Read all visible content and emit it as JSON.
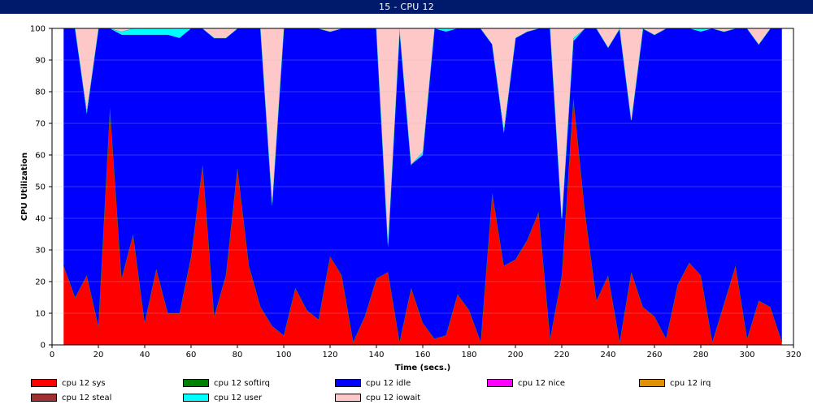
{
  "window": {
    "title": "15 - CPU 12"
  },
  "chart_data": {
    "type": "area",
    "stacked": true,
    "xlabel": "Time (secs.)",
    "ylabel": "CPU Utilization",
    "xlim": [
      0,
      320
    ],
    "ylim": [
      0,
      100
    ],
    "xticks": [
      0,
      20,
      40,
      60,
      80,
      100,
      120,
      140,
      160,
      180,
      200,
      220,
      240,
      260,
      280,
      300,
      320
    ],
    "yticks": [
      0,
      10,
      20,
      30,
      40,
      50,
      60,
      70,
      80,
      90,
      100
    ],
    "grid": "horizontal",
    "legend_position": "bottom",
    "x": [
      5,
      10,
      15,
      20,
      25,
      30,
      35,
      40,
      45,
      50,
      55,
      60,
      65,
      70,
      75,
      80,
      85,
      90,
      95,
      100,
      105,
      110,
      115,
      120,
      125,
      130,
      135,
      140,
      145,
      150,
      155,
      160,
      165,
      170,
      175,
      180,
      185,
      190,
      195,
      200,
      205,
      210,
      215,
      220,
      225,
      230,
      235,
      240,
      245,
      250,
      255,
      260,
      265,
      270,
      275,
      280,
      285,
      290,
      295,
      300,
      305,
      310,
      315
    ],
    "series": [
      {
        "name": "cpu 12 sys",
        "color": "#ff0000",
        "values": [
          25,
          15,
          22,
          6,
          75,
          21,
          35,
          7,
          24,
          10,
          10,
          28,
          57,
          9,
          22,
          56,
          25,
          12,
          6,
          3,
          18,
          11,
          8,
          28,
          22,
          1,
          9,
          21,
          23,
          1,
          18,
          7,
          2,
          3,
          16,
          11,
          1,
          48,
          25,
          27,
          33,
          42,
          2,
          22,
          78,
          42,
          14,
          22,
          1,
          23,
          12,
          9,
          2,
          19,
          26,
          22,
          1,
          13,
          25,
          2,
          14,
          12,
          1
        ]
      },
      {
        "name": "cpu 12 softirq",
        "color": "#008000",
        "values": [
          0,
          0,
          0,
          0,
          0,
          0,
          0,
          0,
          0,
          0,
          0,
          0,
          0,
          0,
          0,
          0,
          0,
          0,
          0,
          0,
          0,
          0,
          0,
          0,
          0,
          0,
          0,
          0,
          0,
          0,
          0,
          0,
          0,
          0,
          0,
          0,
          0,
          0,
          0,
          0,
          0,
          0,
          0,
          0,
          0,
          0,
          0,
          0,
          0,
          0,
          0,
          0,
          0,
          0,
          0,
          0,
          0,
          0,
          0,
          0,
          0,
          0,
          0
        ]
      },
      {
        "name": "cpu 12 idle",
        "color": "#0000ff",
        "values": [
          75,
          85,
          51,
          94,
          25,
          77,
          63,
          91,
          74,
          88,
          87,
          72,
          43,
          88,
          75,
          44,
          75,
          88,
          38,
          97,
          82,
          89,
          92,
          71,
          78,
          99,
          91,
          79,
          8,
          99,
          39,
          53,
          98,
          96,
          84,
          89,
          99,
          47,
          42,
          70,
          66,
          58,
          98,
          18,
          18,
          58,
          86,
          72,
          99,
          48,
          88,
          89,
          98,
          81,
          74,
          77,
          99,
          86,
          75,
          98,
          81,
          88,
          99
        ]
      },
      {
        "name": "cpu 12 nice",
        "color": "#ff00ff",
        "values": [
          0,
          0,
          0,
          0,
          0,
          0,
          0,
          0,
          0,
          0,
          0,
          0,
          0,
          0,
          0,
          0,
          0,
          0,
          0,
          0,
          0,
          0,
          0,
          0,
          0,
          0,
          0,
          0,
          0,
          0,
          0,
          0,
          0,
          0,
          0,
          0,
          0,
          0,
          0,
          0,
          0,
          0,
          0,
          0,
          0,
          0,
          0,
          0,
          0,
          0,
          0,
          0,
          0,
          0,
          0,
          0,
          0,
          0,
          0,
          0,
          0,
          0,
          0
        ]
      },
      {
        "name": "cpu 12 irq",
        "color": "#e09000",
        "values": [
          0,
          0,
          0,
          0,
          0,
          0,
          0,
          0,
          0,
          0,
          0,
          0,
          0,
          0,
          0,
          0,
          0,
          0,
          0,
          0,
          0,
          0,
          0,
          0,
          0,
          0,
          0,
          0,
          0,
          0,
          0,
          0,
          0,
          0,
          0,
          0,
          0,
          0,
          0,
          0,
          0,
          0,
          0,
          0,
          0,
          0,
          0,
          0,
          0,
          0,
          0,
          0,
          0,
          0,
          0,
          0,
          0,
          0,
          0,
          0,
          0,
          0,
          0
        ]
      },
      {
        "name": "cpu 12 steal",
        "color": "#a03030",
        "values": [
          0,
          0,
          0,
          0,
          0,
          0,
          0,
          0,
          0,
          0,
          0,
          0,
          0,
          0,
          0,
          0,
          0,
          0,
          0,
          0,
          0,
          0,
          0,
          0,
          0,
          0,
          0,
          0,
          0,
          0,
          0,
          0,
          0,
          0,
          0,
          0,
          0,
          0,
          0,
          0,
          0,
          0,
          0,
          0,
          0,
          0,
          0,
          0,
          0,
          0,
          0,
          0,
          0,
          0,
          0,
          0,
          0,
          0,
          0,
          0,
          0,
          0,
          0
        ]
      },
      {
        "name": "cpu 12 user",
        "color": "#00ffff",
        "values": [
          0,
          0,
          1,
          0,
          0,
          1,
          2,
          2,
          2,
          2,
          3,
          0,
          0,
          0,
          0,
          0,
          0,
          0,
          1,
          0,
          0,
          0,
          0,
          0,
          0,
          0,
          0,
          0,
          1,
          0,
          0,
          1,
          0,
          1,
          0,
          0,
          0,
          0,
          1,
          0,
          0,
          0,
          0,
          0,
          1,
          0,
          0,
          0,
          0,
          0,
          0,
          0,
          0,
          0,
          0,
          1,
          0,
          0,
          0,
          0,
          0,
          0,
          0
        ]
      },
      {
        "name": "cpu 12 iowait",
        "color": "#ffc8c8",
        "values": [
          0,
          0,
          26,
          0,
          0,
          1,
          0,
          0,
          0,
          0,
          0,
          0,
          0,
          3,
          3,
          0,
          0,
          0,
          55,
          0,
          0,
          0,
          0,
          1,
          0,
          0,
          0,
          0,
          68,
          0,
          43,
          39,
          0,
          0,
          0,
          0,
          0,
          5,
          32,
          3,
          1,
          0,
          0,
          60,
          3,
          0,
          0,
          6,
          0,
          29,
          0,
          2,
          0,
          0,
          0,
          0,
          0,
          1,
          0,
          0,
          5,
          0,
          0
        ]
      }
    ]
  }
}
